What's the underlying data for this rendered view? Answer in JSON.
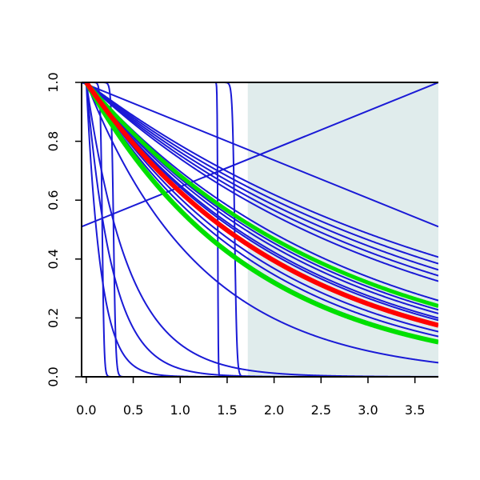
{
  "chart_data": {
    "type": "line",
    "title": "",
    "xlabel": "",
    "ylabel": "",
    "xlim": [
      -0.05,
      3.75
    ],
    "ylim": [
      0,
      1
    ],
    "xticks": [
      0,
      0.5,
      1,
      1.5,
      2,
      2.5,
      3,
      3.5
    ],
    "xtick_labels": [
      "0.0",
      "0.5",
      "1.0",
      "1.5",
      "2.0",
      "2.5",
      "3.0",
      "3.5"
    ],
    "yticks": [
      0,
      0.2,
      0.4,
      0.6,
      0.8,
      1
    ],
    "ytick_labels": [
      "0.0",
      "0.2",
      "0.4",
      "0.6",
      "0.8",
      "1.0"
    ],
    "shaded_region": {
      "x_from": 1.72,
      "x_to": 3.75,
      "color": "#e0ecec"
    },
    "grid": false,
    "legend": "none",
    "colors": {
      "blue": "#1a1ad6",
      "green": "#00e000",
      "red": "#ff0000"
    },
    "series": [
      {
        "kind": "exp",
        "rate": 0.24,
        "color": "blue",
        "width": 2
      },
      {
        "kind": "exp",
        "rate": 0.255,
        "color": "blue",
        "width": 2
      },
      {
        "kind": "exp",
        "rate": 0.27,
        "color": "blue",
        "width": 2
      },
      {
        "kind": "exp",
        "rate": 0.285,
        "color": "blue",
        "width": 2
      },
      {
        "kind": "exp",
        "rate": 0.3,
        "color": "blue",
        "width": 2
      },
      {
        "kind": "exp",
        "rate": 0.36,
        "color": "blue",
        "width": 2
      },
      {
        "kind": "exp",
        "rate": 0.395,
        "color": "blue",
        "width": 2
      },
      {
        "kind": "exp",
        "rate": 0.41,
        "color": "blue",
        "width": 2
      },
      {
        "kind": "exp",
        "rate": 0.43,
        "color": "blue",
        "width": 2
      },
      {
        "kind": "exp",
        "rate": 0.44,
        "color": "blue",
        "width": 2
      },
      {
        "kind": "exp",
        "rate": 0.5,
        "color": "blue",
        "width": 2
      },
      {
        "kind": "exp",
        "rate": 0.53,
        "color": "blue",
        "width": 2
      },
      {
        "kind": "exp",
        "rate": 0.56,
        "color": "blue",
        "width": 2
      },
      {
        "kind": "exp",
        "rate": 0.81,
        "color": "blue",
        "width": 2
      },
      {
        "kind": "linear",
        "x": [
          -0.05,
          3.75
        ],
        "y": [
          0.51,
          1.0
        ],
        "color": "blue",
        "width": 2
      },
      {
        "kind": "linear",
        "x": [
          -0.05,
          3.75
        ],
        "y": [
          1.0,
          0.51
        ],
        "color": "blue",
        "width": 2
      },
      {
        "kind": "exp",
        "rate": 2.2,
        "color": "blue",
        "width": 2
      },
      {
        "kind": "exp",
        "rate": 3.6,
        "color": "blue",
        "width": 2
      },
      {
        "kind": "exp",
        "rate": 6.5,
        "color": "blue",
        "width": 2
      },
      {
        "kind": "step",
        "t": 0.17,
        "s": 0.01,
        "color": "blue",
        "width": 2
      },
      {
        "kind": "step",
        "t": 0.29,
        "s": 0.012,
        "color": "blue",
        "width": 2
      },
      {
        "kind": "step",
        "t": 1.4,
        "s": 0.003,
        "color": "blue",
        "width": 2
      },
      {
        "kind": "step",
        "t": 1.58,
        "s": 0.012,
        "color": "blue",
        "width": 2
      },
      {
        "kind": "exp",
        "rate": 0.38,
        "color": "green",
        "width": 5
      },
      {
        "kind": "exp",
        "rate": 0.57,
        "color": "green",
        "width": 6
      },
      {
        "kind": "exp",
        "rate": 0.465,
        "color": "red",
        "width": 6
      }
    ]
  }
}
